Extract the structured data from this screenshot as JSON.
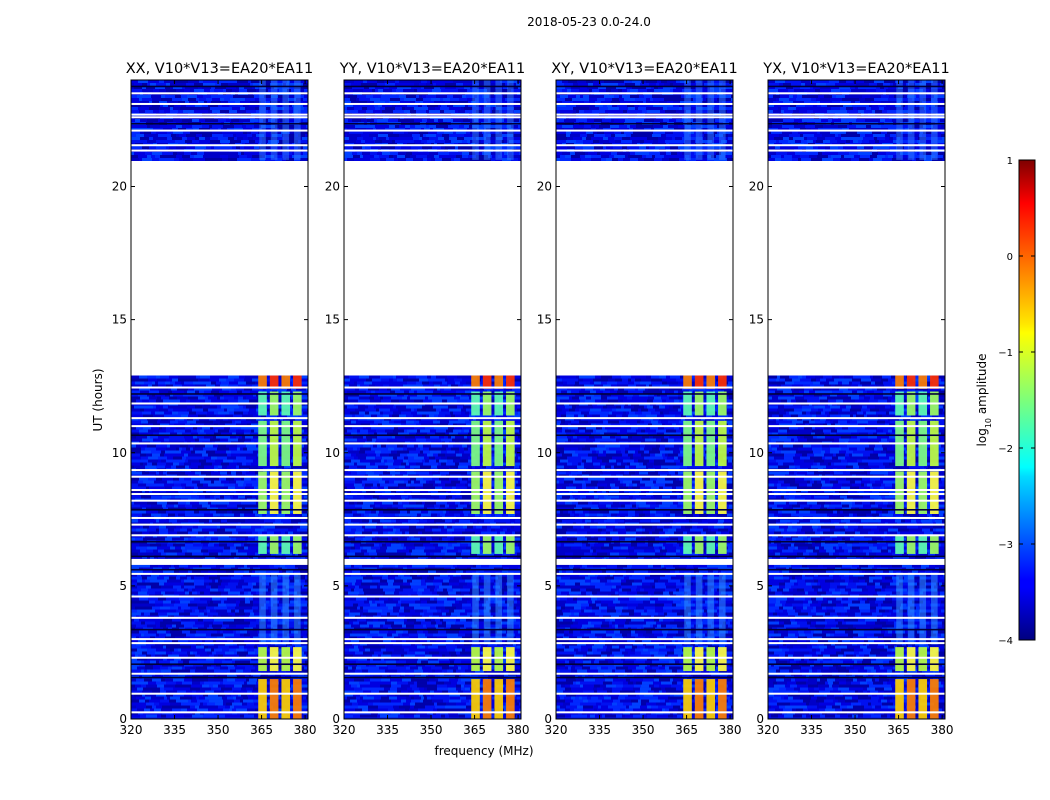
{
  "suptitle": "2018-05-23 0.0-24.0",
  "chart_data": {
    "type": "heatmap",
    "panels": [
      {
        "title": "XX, V10*V13=EA20*EA11"
      },
      {
        "title": "YY, V10*V13=EA20*EA11"
      },
      {
        "title": "XY, V10*V13=EA20*EA11"
      },
      {
        "title": "YX, V10*V13=EA20*EA11"
      }
    ],
    "xlabel": "frequency (MHz)",
    "ylabel": "UT (hours)",
    "xlim": [
      320,
      381
    ],
    "ylim": [
      0,
      24
    ],
    "xticks": [
      320,
      335,
      350,
      365,
      380
    ],
    "yticks": [
      0,
      5,
      10,
      15,
      20
    ],
    "data_gap_hours": [
      12.9,
      21.0
    ],
    "bright_band_mhz": [
      360,
      380
    ],
    "colorbar": {
      "label": "log10 amplitude",
      "label_base": "log",
      "label_sub": "10",
      "label_rest": " amplitude",
      "range": [
        -4,
        1
      ],
      "ticks": [
        "1",
        "0",
        "−1",
        "−2",
        "−3",
        "−4"
      ],
      "tick_values": [
        1,
        0,
        -1,
        -2,
        -3,
        -4
      ],
      "colormap": "jet"
    }
  }
}
